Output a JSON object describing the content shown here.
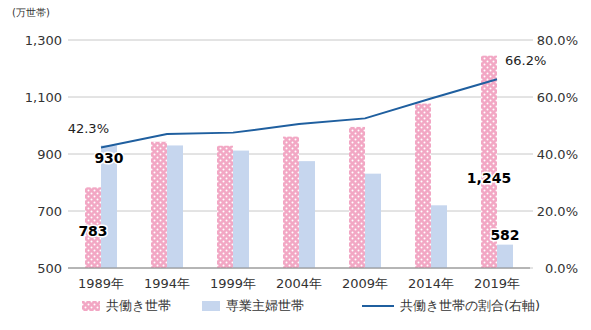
{
  "chart_data": {
    "type": "bar",
    "y_label": "(万世帯)",
    "categories": [
      "1989年",
      "1994年",
      "1999年",
      "2004年",
      "2009年",
      "2014年",
      "2019年"
    ],
    "ylim": [
      500,
      1300
    ],
    "yticks": [
      500,
      700,
      900,
      {
        "value": 1100,
        "label": "1,100"
      },
      {
        "value": 1300,
        "label": "1,300"
      }
    ],
    "y2lim": [
      0,
      80
    ],
    "y2ticks": [
      {
        "value": 0,
        "label": "0.0%"
      },
      {
        "value": 20,
        "label": "20.0%"
      },
      {
        "value": 40,
        "label": "40.0%"
      },
      {
        "value": 60,
        "label": "60.0%"
      },
      {
        "value": 80,
        "label": "80.0%"
      }
    ],
    "grid": true,
    "legend": "bottom",
    "series": [
      {
        "name": "共働き世帯",
        "type": "bar",
        "color": "#f2a7c4",
        "values": [
          783,
          943,
          929,
          961,
          995,
          1077,
          1245
        ],
        "value_labels": [
          "783",
          null,
          null,
          null,
          null,
          null,
          "1,245"
        ]
      },
      {
        "name": "専業主婦世帯",
        "type": "bar",
        "color": "#c6d6ee",
        "values": [
          930,
          930,
          912,
          875,
          831,
          720,
          582
        ],
        "value_labels": [
          "930",
          null,
          null,
          null,
          null,
          null,
          "582"
        ]
      },
      {
        "name": "共働き世帯の割合(右軸)",
        "type": "line",
        "axis": "y2",
        "color": "#1f5f9f",
        "values": [
          42.3,
          47.0,
          47.5,
          50.5,
          52.5,
          59.5,
          66.2
        ],
        "value_labels": [
          "42.3%",
          null,
          null,
          null,
          null,
          null,
          "66.2%"
        ]
      }
    ]
  }
}
